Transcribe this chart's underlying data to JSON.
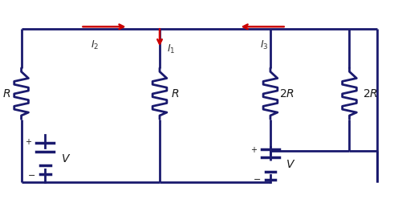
{
  "bg_color": "#ffffff",
  "wire_color": "#1a1a6e",
  "resistor_color": "#1a1a6e",
  "arrow_color": "#cc0000",
  "label_color": "#1a1a1a",
  "current_label_color": "#333333",
  "wire_lw": 2.0,
  "resistor_lw": 2.0,
  "arrow_lw": 1.8,
  "fig_width": 4.96,
  "fig_height": 2.48
}
